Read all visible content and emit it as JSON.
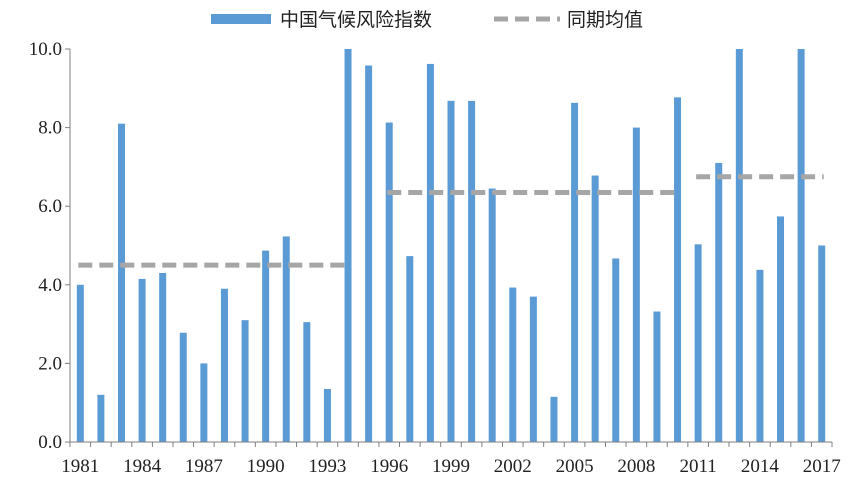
{
  "chart_data": {
    "type": "bar",
    "title": "",
    "xlabel": "",
    "ylabel": "",
    "ylim": [
      0,
      10
    ],
    "yticks": [
      "0.0",
      "2.0",
      "4.0",
      "6.0",
      "8.0",
      "10.0"
    ],
    "x": [
      1981,
      1982,
      1983,
      1984,
      1985,
      1986,
      1987,
      1988,
      1989,
      1990,
      1991,
      1992,
      1993,
      1994,
      1995,
      1996,
      1997,
      1998,
      1999,
      2000,
      2001,
      2002,
      2003,
      2004,
      2005,
      2006,
      2007,
      2008,
      2009,
      2010,
      2011,
      2012,
      2013,
      2014,
      2015,
      2016,
      2017
    ],
    "xtick_labels": [
      "1981",
      "1984",
      "1987",
      "1990",
      "1993",
      "1996",
      "1999",
      "2002",
      "2005",
      "2008",
      "2011",
      "2014",
      "2017"
    ],
    "grid": false,
    "legend_position": "top",
    "series": [
      {
        "name": "中国气候风险指数",
        "type": "bar",
        "color": "#5b9bd5",
        "values": [
          4.0,
          1.2,
          8.1,
          4.15,
          4.3,
          2.78,
          2.0,
          3.9,
          3.1,
          4.87,
          5.23,
          3.05,
          1.35,
          10.0,
          9.58,
          8.13,
          4.73,
          9.62,
          8.68,
          8.68,
          6.45,
          3.93,
          3.7,
          1.15,
          8.63,
          6.78,
          4.67,
          8.0,
          3.32,
          8.77,
          5.03,
          7.1,
          10.0,
          4.38,
          5.74,
          10.0,
          5.0
        ]
      },
      {
        "name": "同期均值",
        "type": "line",
        "style": "dashed",
        "color": "#a6a6a6",
        "segments": [
          {
            "x_start": 1981,
            "x_end": 1994,
            "value": 4.5
          },
          {
            "x_start": 1996,
            "x_end": 2010,
            "value": 6.35
          },
          {
            "x_start": 2011,
            "x_end": 2017,
            "value": 6.75
          }
        ]
      }
    ]
  }
}
